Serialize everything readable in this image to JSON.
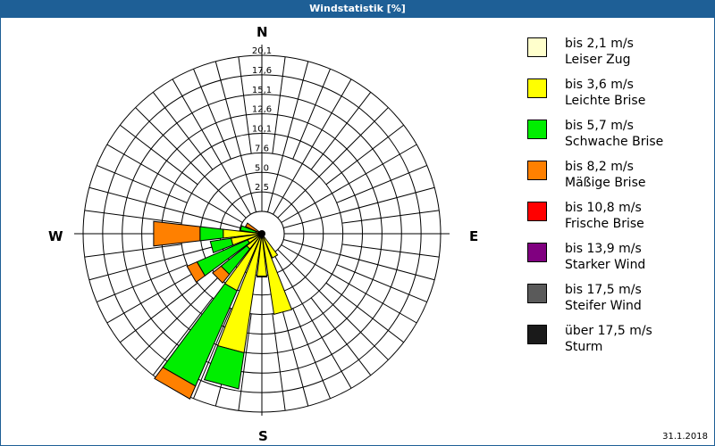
{
  "window": {
    "title": "Windstatistik [%]"
  },
  "compass": {
    "n": "N",
    "e": "E",
    "s": "S",
    "w": "W"
  },
  "date": "31.1.2018",
  "legend": {
    "items": [
      {
        "range": "bis 2,1 m/s",
        "name": "Leiser Zug",
        "color": "#ffffcc"
      },
      {
        "range": "bis 3,6 m/s",
        "name": "Leichte Brise",
        "color": "#ffff00"
      },
      {
        "range": "bis 5,7 m/s",
        "name": "Schwache Brise",
        "color": "#00ee00"
      },
      {
        "range": "bis 8,2 m/s",
        "name": "Mäßige Brise",
        "color": "#ff8000"
      },
      {
        "range": "bis 10,8 m/s",
        "name": "Frische Brise",
        "color": "#ff0000"
      },
      {
        "range": "bis 13,9 m/s",
        "name": "Starker Wind",
        "color": "#800080"
      },
      {
        "range": "bis 17,5 m/s",
        "name": "Steifer Wind",
        "color": "#5a5a5a"
      },
      {
        "range": "über 17,5 m/s",
        "name": "Sturm",
        "color": "#1a1a1a"
      }
    ]
  },
  "chart_data": {
    "type": "wind-rose",
    "title": "Windstatistik [%]",
    "date": "31.1.2018",
    "ring_labels": [
      "2,5",
      "5,0",
      "7,6",
      "10,1",
      "12,6",
      "15,1",
      "17,6",
      "20,1"
    ],
    "rmax_percent": 20.1,
    "sectors_deg_step": 15,
    "speed_classes": [
      "bis 2,1 m/s",
      "bis 3,6 m/s",
      "bis 5,7 m/s",
      "bis 8,2 m/s",
      "bis 10,8 m/s",
      "bis 13,9 m/s",
      "bis 17,5 m/s",
      "über 17,5 m/s"
    ],
    "colors": [
      "#ffffcc",
      "#ffff00",
      "#00ee00",
      "#ff8000",
      "#ff0000",
      "#800080",
      "#5a5a5a",
      "#1a1a1a"
    ],
    "directions": [
      {
        "deg": 150,
        "cumulative_percent": [
          0.0,
          3.4,
          3.4,
          3.4
        ]
      },
      {
        "deg": 165,
        "cumulative_percent": [
          0.0,
          10.5,
          10.5,
          10.5
        ]
      },
      {
        "deg": 180,
        "cumulative_percent": [
          0.0,
          5.5,
          5.5,
          5.6
        ]
      },
      {
        "deg": 195,
        "cumulative_percent": [
          0.0,
          15.5,
          20.2,
          20.2
        ]
      },
      {
        "deg": 210,
        "cumulative_percent": [
          0.0,
          8.0,
          21.4,
          23.2
        ]
      },
      {
        "deg": 225,
        "cumulative_percent": [
          0.0,
          2.5,
          6.7,
          8.1
        ]
      },
      {
        "deg": 240,
        "cumulative_percent": [
          0.0,
          2.0,
          9.1,
          10.5
        ]
      },
      {
        "deg": 255,
        "cumulative_percent": [
          0.0,
          4.0,
          6.7,
          6.7
        ]
      },
      {
        "deg": 270,
        "cumulative_percent": [
          0.0,
          5.0,
          8.0,
          14.0
        ]
      },
      {
        "deg": 285,
        "cumulative_percent": [
          0.0,
          0.8,
          2.8,
          2.8
        ]
      },
      {
        "deg": 300,
        "cumulative_percent": [
          0.0,
          0.0,
          0.0,
          2.3
        ]
      }
    ]
  }
}
